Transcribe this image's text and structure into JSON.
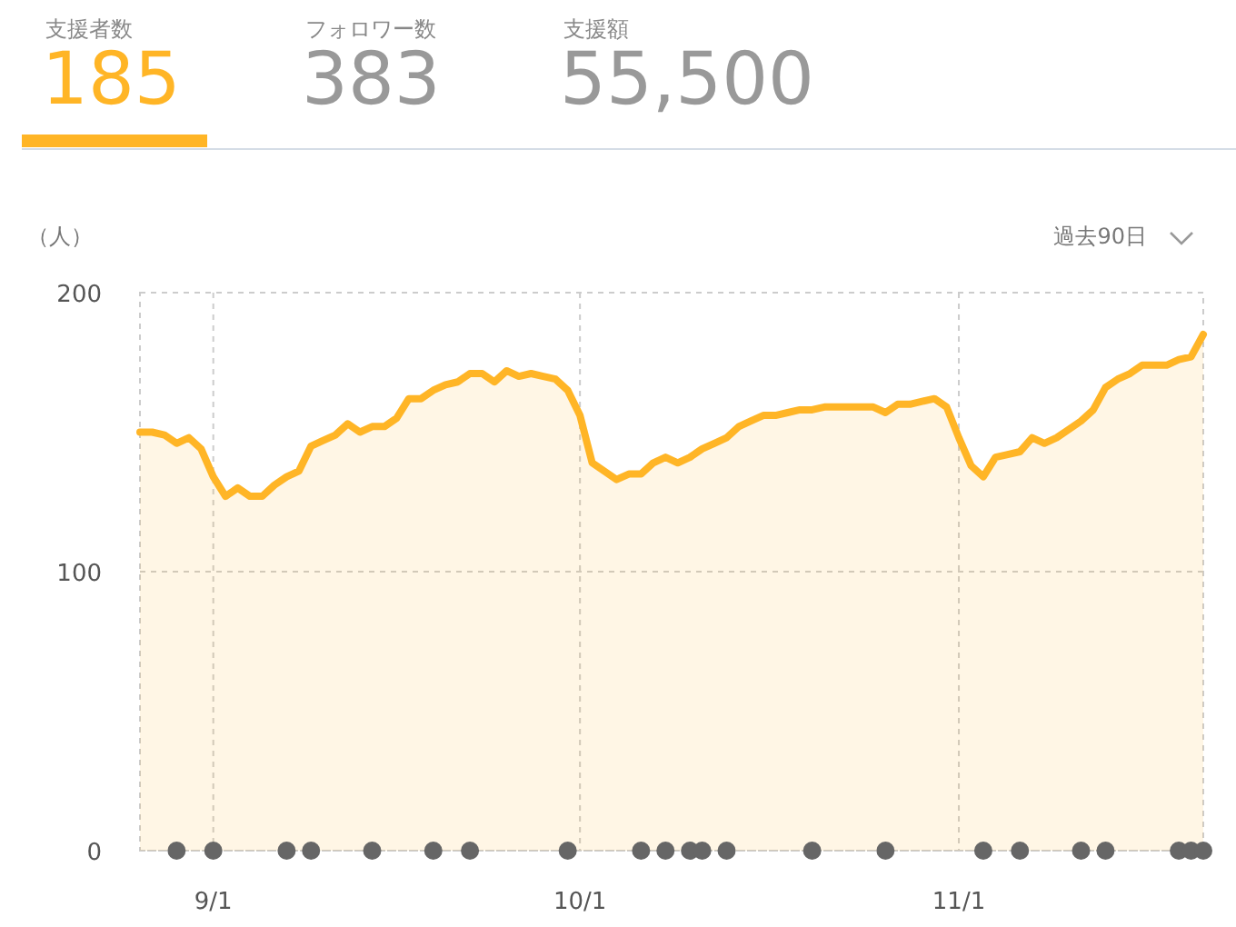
{
  "chart_data": [
    {
      "type": "other",
      "categories": [
        "支援者数",
        "フォロワー数",
        "支援額"
      ],
      "annotations": [
        "185",
        "383",
        "55,500"
      ],
      "colors": [
        "#ffb526",
        "#999999",
        "#999999"
      ]
    },
    {
      "type": "area",
      "ylabel": "（人）",
      "annotations": [
        "過去90日"
      ],
      "xlim": [
        "--08-26",
        "--11-21"
      ],
      "ylim": [
        0,
        200
      ],
      "yticks": [
        0,
        100,
        200
      ],
      "xticks": [
        {
          "value": "--09-01",
          "label": "9/1"
        },
        {
          "value": "--10-01",
          "label": "10/1"
        },
        {
          "value": "--11-01",
          "label": "11/1"
        }
      ],
      "grid": true,
      "series": [
        {
          "type": "area",
          "color": "#ffb526",
          "x": [
            "--08-26",
            "--08-27",
            "--08-28",
            "--08-29",
            "--08-30",
            "--08-31",
            "--09-01",
            "--09-02",
            "--09-03",
            "--09-04",
            "--09-05",
            "--09-06",
            "--09-07",
            "--09-08",
            "--09-09",
            "--09-10",
            "--09-11",
            "--09-12",
            "--09-13",
            "--09-14",
            "--09-15",
            "--09-16",
            "--09-17",
            "--09-18",
            "--09-19",
            "--09-20",
            "--09-21",
            "--09-22",
            "--09-23",
            "--09-24",
            "--09-25",
            "--09-26",
            "--09-27",
            "--09-28",
            "--09-29",
            "--09-30",
            "--10-01",
            "--10-02",
            "--10-03",
            "--10-04",
            "--10-05",
            "--10-06",
            "--10-07",
            "--10-08",
            "--10-09",
            "--10-10",
            "--10-11",
            "--10-12",
            "--10-13",
            "--10-14",
            "--10-15",
            "--10-16",
            "--10-17",
            "--10-18",
            "--10-19",
            "--10-20",
            "--10-21",
            "--10-22",
            "--10-23",
            "--10-24",
            "--10-25",
            "--10-26",
            "--10-27",
            "--10-28",
            "--10-29",
            "--10-30",
            "--10-31",
            "--11-01",
            "--11-02",
            "--11-03",
            "--11-04",
            "--11-05",
            "--11-06",
            "--11-07",
            "--11-08",
            "--11-09",
            "--11-10",
            "--11-11",
            "--11-12",
            "--11-13",
            "--11-14",
            "--11-15",
            "--11-16",
            "--11-17",
            "--11-18",
            "--11-19",
            "--11-20",
            "--11-21"
          ],
          "values": [
            150,
            150,
            149,
            146,
            148,
            144,
            134,
            127,
            130,
            127,
            127,
            131,
            134,
            136,
            145,
            147,
            149,
            153,
            150,
            152,
            152,
            155,
            162,
            162,
            165,
            167,
            168,
            171,
            171,
            168,
            172,
            170,
            171,
            170,
            169,
            165,
            156,
            139,
            136,
            133,
            135,
            135,
            139,
            141,
            139,
            141,
            144,
            146,
            148,
            152,
            154,
            156,
            156,
            157,
            158,
            158,
            159,
            159,
            159,
            159,
            159,
            157,
            160,
            160,
            161,
            162,
            159,
            148,
            138,
            134,
            141,
            142,
            143,
            148,
            146,
            148,
            151,
            154,
            158,
            166,
            169,
            171,
            174,
            174,
            174,
            176,
            177,
            185
          ]
        },
        {
          "type": "scatter",
          "color": "#666666",
          "marker": "circle",
          "x": [
            "--08-29",
            "--09-01",
            "--09-07",
            "--09-09",
            "--09-14",
            "--09-19",
            "--09-22",
            "--09-30",
            "--10-06",
            "--10-08",
            "--10-10",
            "--10-11",
            "--10-13",
            "--10-20",
            "--10-26",
            "--11-03",
            "--11-06",
            "--11-11",
            "--11-13",
            "--11-19",
            "--11-20",
            "--11-21"
          ],
          "values": [
            0,
            0,
            0,
            0,
            0,
            0,
            0,
            0,
            0,
            0,
            0,
            0,
            0,
            0,
            0,
            0,
            0,
            0,
            0,
            0,
            0,
            0
          ]
        }
      ]
    }
  ]
}
